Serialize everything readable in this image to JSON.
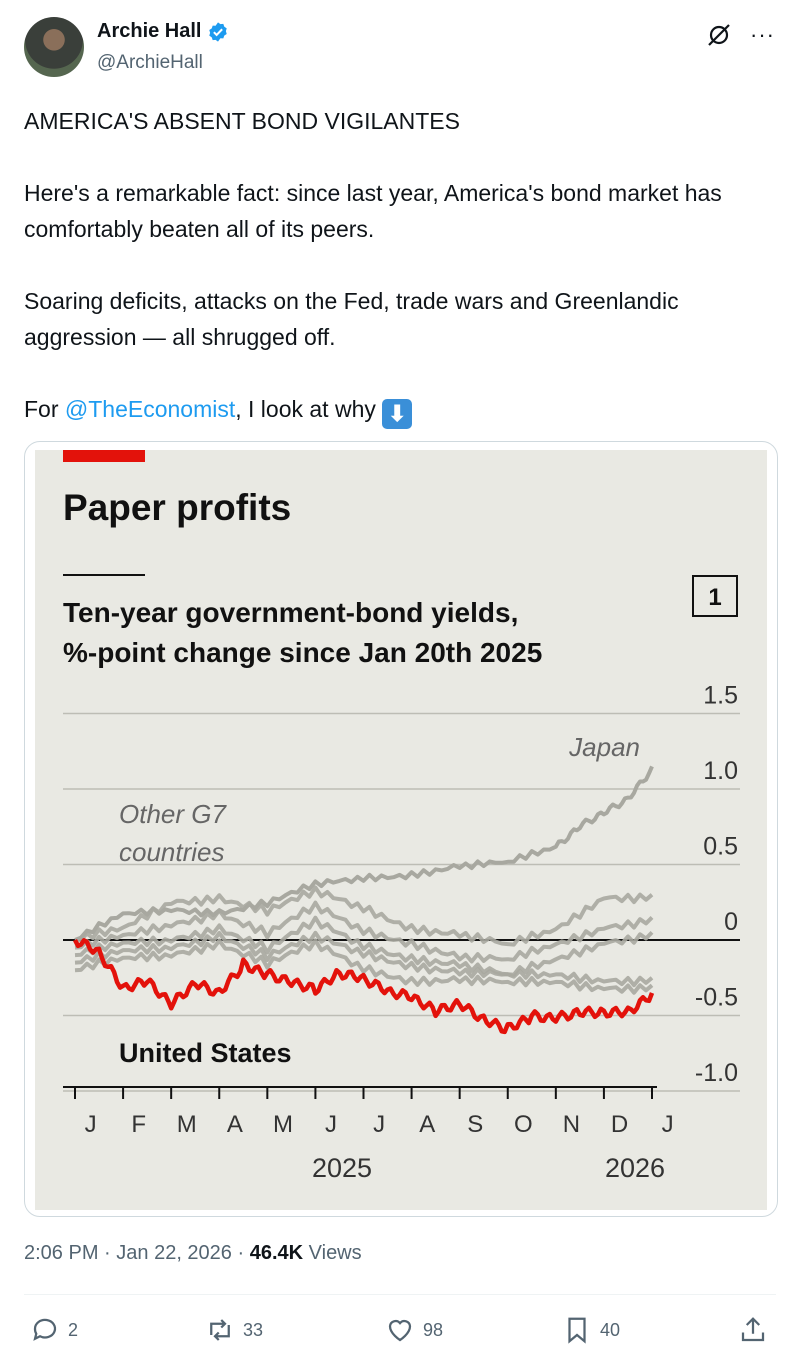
{
  "author": {
    "name": "Archie Hall",
    "handle": "@ArchieHall"
  },
  "tweet": {
    "line1": "AMERICA'S ABSENT BOND VIGILANTES",
    "line2": "Here's a remarkable fact: since last year, America's bond market has comfortably beaten all of its peers.",
    "line3": "Soaring deficits, attacks on the Fed, trade wars and Greenlandic aggression — all shrugged off.",
    "line4_pre": "For ",
    "line4_mention": "@TheEconomist",
    "line4_post": ", I look at why ",
    "emoji": "⬇"
  },
  "chart_data": {
    "type": "line",
    "title": "Paper profits",
    "subtitle_line1": "Ten-year government-bond yields,",
    "subtitle_line2": "%-point change since Jan 20th 2025",
    "chart_number": "1",
    "ylim": [
      -1.0,
      1.5
    ],
    "yticks": [
      "1.5",
      "1.0",
      "0.5",
      "0",
      "-0.5",
      "-1.0"
    ],
    "month_labels": [
      "J",
      "F",
      "M",
      "A",
      "M",
      "J",
      "J",
      "A",
      "S",
      "O",
      "N",
      "D",
      "J"
    ],
    "year_labels": [
      "2025",
      "2026"
    ],
    "labels": {
      "japan": "Japan",
      "other1": "Other G7",
      "other2": "countries",
      "us": "United States"
    },
    "colors": {
      "us": "#e3120b",
      "others": "#a8a8a0",
      "accent": "#e3120b"
    },
    "series": [
      {
        "name": "United States",
        "x": [
          0,
          0.5,
          1,
          1.5,
          2,
          2.5,
          3,
          3.5,
          4,
          4.5,
          5,
          5.5,
          6,
          6.5,
          7,
          7.5,
          8,
          8.5,
          9,
          9.5,
          10,
          10.5,
          11,
          11.5,
          12
        ],
        "values": [
          0,
          -0.1,
          -0.35,
          -0.3,
          -0.45,
          -0.3,
          -0.35,
          -0.15,
          -0.2,
          -0.25,
          -0.3,
          -0.2,
          -0.25,
          -0.35,
          -0.4,
          -0.5,
          -0.45,
          -0.55,
          -0.6,
          -0.5,
          -0.5,
          -0.45,
          -0.45,
          -0.45,
          -0.35
        ]
      },
      {
        "name": "Japan",
        "x": [
          0,
          1,
          2,
          3,
          4,
          5,
          6,
          7,
          8,
          9,
          10,
          10.5,
          11,
          11.5,
          12
        ],
        "values": [
          0,
          0.15,
          0.2,
          0.2,
          0.25,
          0.35,
          0.4,
          0.45,
          0.5,
          0.5,
          0.6,
          0.75,
          0.85,
          0.95,
          1.15
        ]
      },
      {
        "name": "Other G7 A",
        "x": [
          0,
          1,
          2,
          3,
          4,
          5,
          6,
          7,
          8,
          9,
          10,
          11,
          12
        ],
        "values": [
          0,
          0.05,
          0.25,
          0.3,
          0.2,
          0.3,
          0.2,
          0.1,
          0.05,
          -0.05,
          0.05,
          0.3,
          0.3
        ]
      },
      {
        "name": "Other G7 B",
        "x": [
          0,
          1,
          2,
          3,
          4,
          5,
          6,
          7,
          8,
          9,
          10,
          11,
          12
        ],
        "values": [
          -0.05,
          0,
          0.1,
          0.2,
          0.05,
          0.2,
          0.05,
          0,
          -0.1,
          -0.15,
          -0.05,
          0.1,
          0.15
        ]
      },
      {
        "name": "Other G7 C",
        "x": [
          0,
          1,
          2,
          3,
          4,
          5,
          6,
          7,
          8,
          9,
          10,
          11,
          12
        ],
        "values": [
          -0.1,
          -0.05,
          0.0,
          0.1,
          -0.05,
          0.1,
          -0.05,
          -0.1,
          -0.15,
          -0.25,
          -0.15,
          0.0,
          0.05
        ]
      },
      {
        "name": "Other G7 D",
        "x": [
          0,
          1,
          2,
          3,
          4,
          5,
          6,
          7,
          8,
          9,
          10,
          11,
          12
        ],
        "values": [
          -0.15,
          -0.1,
          -0.05,
          0.05,
          -0.1,
          0.0,
          -0.1,
          -0.15,
          -0.2,
          -0.25,
          -0.25,
          -0.25,
          -0.25
        ]
      },
      {
        "name": "Other G7 E",
        "x": [
          0,
          1,
          2,
          3,
          4,
          5,
          6,
          7,
          8,
          9,
          10,
          11,
          12
        ],
        "values": [
          -0.2,
          -0.15,
          -0.1,
          0.0,
          -0.15,
          -0.05,
          -0.2,
          -0.25,
          -0.25,
          -0.3,
          -0.3,
          -0.3,
          -0.3
        ]
      }
    ]
  },
  "meta": {
    "time": "2:06 PM",
    "date": "Jan 22, 2026",
    "views_count": "46.4K",
    "views_label": "Views"
  },
  "actions": {
    "replies": "2",
    "reposts": "33",
    "likes": "98",
    "bookmarks": "40"
  }
}
